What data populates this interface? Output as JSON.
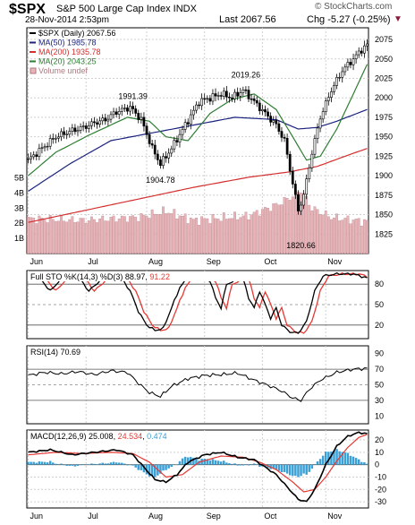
{
  "header": {
    "symbol": "$SPX",
    "name": "S&P 500 Large Cap Index INDX",
    "watermark": "© StockCharts.com",
    "date": "28-Nov-2014 2:53pm",
    "last": "Last 2067.56",
    "change": "Chg -5.27 (-0.25%)",
    "change_arrow": "▼"
  },
  "colors": {
    "candle": "#000000",
    "ma50": "#1a237e",
    "ma200": "#d32f2f",
    "ma20": "#2e7d32",
    "volume": "#e8b4b8",
    "volume_edge": "#b07a80",
    "sto_k": "#000000",
    "sto_d": "#e53935",
    "rsi": "#000000",
    "macd": "#000000",
    "macd_signal": "#e53935",
    "macd_hist": "#3aa0d6",
    "grid": "#cfcfcf",
    "frame": "#000000"
  },
  "chart_data": [
    {
      "type": "candlestick",
      "legend": [
        {
          "key": "price",
          "label": "$SPX (Daily) 2067.56"
        },
        {
          "key": "ma50",
          "label": "MA(50) 1985.78"
        },
        {
          "key": "ma200",
          "label": "MA(200) 1935.78"
        },
        {
          "key": "ma20",
          "label": "MA(20) 2043.25"
        },
        {
          "key": "volume",
          "label": "Volume undef"
        }
      ],
      "legend_placement": "top-left",
      "ylim": [
        1800,
        2090
      ],
      "y_ticks": [
        1825,
        1850,
        1875,
        1900,
        1925,
        1950,
        1975,
        2000,
        2025,
        2050,
        2075
      ],
      "x_ticks": [
        "Jun",
        "Jul",
        "Aug",
        "Sep",
        "Oct",
        "Nov"
      ],
      "x_tick_index": [
        0,
        21,
        43,
        64,
        85,
        108
      ],
      "annotations": [
        {
          "text": "1991.39",
          "index": 38,
          "value": 1991.39,
          "pos": "above"
        },
        {
          "text": "1904.78",
          "index": 48,
          "value": 1904.78,
          "pos": "below"
        },
        {
          "text": "2019.26",
          "index": 79,
          "value": 2019.26,
          "pos": "above"
        },
        {
          "text": "1820.66",
          "index": 99,
          "value": 1820.66,
          "pos": "below"
        }
      ],
      "price_anchors": [
        [
          0,
          1920
        ],
        [
          5,
          1935
        ],
        [
          10,
          1950
        ],
        [
          16,
          1958
        ],
        [
          20,
          1962
        ],
        [
          24,
          1968
        ],
        [
          28,
          1972
        ],
        [
          32,
          1982
        ],
        [
          37,
          1988
        ],
        [
          41,
          1972
        ],
        [
          45,
          1935
        ],
        [
          48,
          1915
        ],
        [
          52,
          1935
        ],
        [
          57,
          1965
        ],
        [
          62,
          1995
        ],
        [
          66,
          2000
        ],
        [
          70,
          2005
        ],
        [
          74,
          2000
        ],
        [
          78,
          2010
        ],
        [
          82,
          1995
        ],
        [
          86,
          1980
        ],
        [
          90,
          1965
        ],
        [
          93,
          1945
        ],
        [
          96,
          1890
        ],
        [
          98,
          1855
        ],
        [
          100,
          1875
        ],
        [
          103,
          1930
        ],
        [
          106,
          1975
        ],
        [
          110,
          2010
        ],
        [
          114,
          2035
        ],
        [
          118,
          2050
        ],
        [
          121,
          2062
        ],
        [
          123,
          2068
        ]
      ],
      "ma50_anchors": [
        [
          0,
          1880
        ],
        [
          15,
          1915
        ],
        [
          30,
          1945
        ],
        [
          45,
          1955
        ],
        [
          60,
          1965
        ],
        [
          75,
          1975
        ],
        [
          90,
          1972
        ],
        [
          98,
          1960
        ],
        [
          105,
          1962
        ],
        [
          112,
          1970
        ],
        [
          123,
          1985
        ]
      ],
      "ma200_anchors": [
        [
          0,
          1840
        ],
        [
          20,
          1855
        ],
        [
          40,
          1870
        ],
        [
          60,
          1885
        ],
        [
          80,
          1898
        ],
        [
          95,
          1905
        ],
        [
          105,
          1912
        ],
        [
          115,
          1925
        ],
        [
          123,
          1935
        ]
      ],
      "ma20_anchors": [
        [
          0,
          1900
        ],
        [
          10,
          1930
        ],
        [
          22,
          1952
        ],
        [
          36,
          1975
        ],
        [
          44,
          1970
        ],
        [
          50,
          1950
        ],
        [
          58,
          1945
        ],
        [
          66,
          1980
        ],
        [
          74,
          1998
        ],
        [
          82,
          2005
        ],
        [
          90,
          1985
        ],
        [
          96,
          1950
        ],
        [
          101,
          1920
        ],
        [
          106,
          1925
        ],
        [
          112,
          1960
        ],
        [
          118,
          2005
        ],
        [
          123,
          2043
        ]
      ]
    },
    {
      "type": "bar",
      "name": "volume",
      "y_ticks_label": [
        "1B",
        "2B",
        "3B",
        "4B",
        "5B"
      ],
      "y_ticks_value": [
        1,
        2,
        3,
        4,
        5
      ],
      "ylim": [
        0,
        5.5
      ],
      "volume_anchors": [
        [
          0,
          2.3
        ],
        [
          20,
          2.2
        ],
        [
          40,
          2.4
        ],
        [
          50,
          2.8
        ],
        [
          60,
          2.2
        ],
        [
          80,
          2.5
        ],
        [
          90,
          3.2
        ],
        [
          96,
          3.8
        ],
        [
          99,
          4.2
        ],
        [
          103,
          3.0
        ],
        [
          110,
          2.4
        ],
        [
          123,
          2.1
        ]
      ]
    },
    {
      "type": "line",
      "title": "Full STO %K(14,3) %D(3) 88.97, 91.22",
      "title_parts": {
        "prefix": "Full STO %K(14,3) %D(3) ",
        "k": "88.97",
        "sep": ", ",
        "d": "91.22"
      },
      "ylim": [
        0,
        100
      ],
      "y_ticks": [
        20,
        50,
        80
      ],
      "ref_lines": [
        20,
        50,
        80
      ],
      "k_anchors": [
        [
          0,
          92
        ],
        [
          5,
          85
        ],
        [
          8,
          70
        ],
        [
          12,
          88
        ],
        [
          18,
          92
        ],
        [
          22,
          70
        ],
        [
          26,
          85
        ],
        [
          30,
          90
        ],
        [
          34,
          88
        ],
        [
          37,
          70
        ],
        [
          40,
          40
        ],
        [
          43,
          20
        ],
        [
          46,
          12
        ],
        [
          49,
          15
        ],
        [
          52,
          45
        ],
        [
          55,
          75
        ],
        [
          58,
          90
        ],
        [
          62,
          90
        ],
        [
          66,
          85
        ],
        [
          68,
          60
        ],
        [
          70,
          45
        ],
        [
          72,
          80
        ],
        [
          75,
          85
        ],
        [
          78,
          88
        ],
        [
          80,
          60
        ],
        [
          82,
          45
        ],
        [
          84,
          70
        ],
        [
          86,
          50
        ],
        [
          88,
          30
        ],
        [
          90,
          45
        ],
        [
          92,
          20
        ],
        [
          95,
          10
        ],
        [
          98,
          8
        ],
        [
          101,
          25
        ],
        [
          104,
          70
        ],
        [
          107,
          92
        ],
        [
          112,
          95
        ],
        [
          118,
          95
        ],
        [
          123,
          89
        ]
      ],
      "d_lag": 2
    },
    {
      "type": "line",
      "title": "RSI(14) 70.69",
      "title_parts": {
        "prefix": "RSI(14) ",
        "value": "70.69"
      },
      "ylim": [
        0,
        100
      ],
      "y_ticks": [
        10,
        30,
        50,
        70,
        90
      ],
      "ref_lines": [
        30,
        70
      ],
      "rsi_anchors": [
        [
          0,
          62
        ],
        [
          6,
          66
        ],
        [
          12,
          64
        ],
        [
          18,
          67
        ],
        [
          24,
          63
        ],
        [
          30,
          68
        ],
        [
          36,
          66
        ],
        [
          40,
          52
        ],
        [
          44,
          40
        ],
        [
          48,
          35
        ],
        [
          52,
          48
        ],
        [
          58,
          58
        ],
        [
          64,
          62
        ],
        [
          70,
          63
        ],
        [
          76,
          65
        ],
        [
          82,
          56
        ],
        [
          88,
          48
        ],
        [
          92,
          42
        ],
        [
          96,
          33
        ],
        [
          99,
          30
        ],
        [
          102,
          44
        ],
        [
          106,
          56
        ],
        [
          112,
          66
        ],
        [
          118,
          70
        ],
        [
          123,
          71
        ]
      ]
    },
    {
      "type": "line",
      "title": "MACD(12,26,9) 25.008, 24.534, 0.474",
      "title_parts": {
        "prefix": "MACD(12,26,9) ",
        "macd": "25.008",
        "sep1": ", ",
        "signal": "24.534",
        "sep2": ", ",
        "hist": "0.474"
      },
      "ylim": [
        -35,
        28
      ],
      "y_ticks": [
        -30,
        -20,
        -10,
        0,
        10,
        20
      ],
      "macd_anchors": [
        [
          0,
          10
        ],
        [
          8,
          12
        ],
        [
          16,
          8
        ],
        [
          24,
          10
        ],
        [
          32,
          12
        ],
        [
          38,
          8
        ],
        [
          42,
          -2
        ],
        [
          46,
          -12
        ],
        [
          50,
          -14
        ],
        [
          54,
          -8
        ],
        [
          58,
          2
        ],
        [
          64,
          8
        ],
        [
          70,
          10
        ],
        [
          76,
          6
        ],
        [
          82,
          4
        ],
        [
          86,
          -2
        ],
        [
          90,
          -8
        ],
        [
          94,
          -18
        ],
        [
          98,
          -28
        ],
        [
          101,
          -30
        ],
        [
          104,
          -20
        ],
        [
          108,
          0
        ],
        [
          112,
          15
        ],
        [
          116,
          23
        ],
        [
          120,
          26
        ],
        [
          123,
          25
        ]
      ],
      "signal_anchors": [
        [
          0,
          8
        ],
        [
          10,
          10
        ],
        [
          20,
          9
        ],
        [
          30,
          10
        ],
        [
          38,
          9
        ],
        [
          44,
          2
        ],
        [
          50,
          -10
        ],
        [
          56,
          -8
        ],
        [
          62,
          2
        ],
        [
          70,
          7
        ],
        [
          78,
          6
        ],
        [
          84,
          2
        ],
        [
          90,
          -4
        ],
        [
          96,
          -14
        ],
        [
          100,
          -22
        ],
        [
          104,
          -20
        ],
        [
          108,
          -10
        ],
        [
          112,
          3
        ],
        [
          116,
          14
        ],
        [
          120,
          22
        ],
        [
          123,
          24.5
        ]
      ]
    }
  ],
  "n_bars": 124
}
